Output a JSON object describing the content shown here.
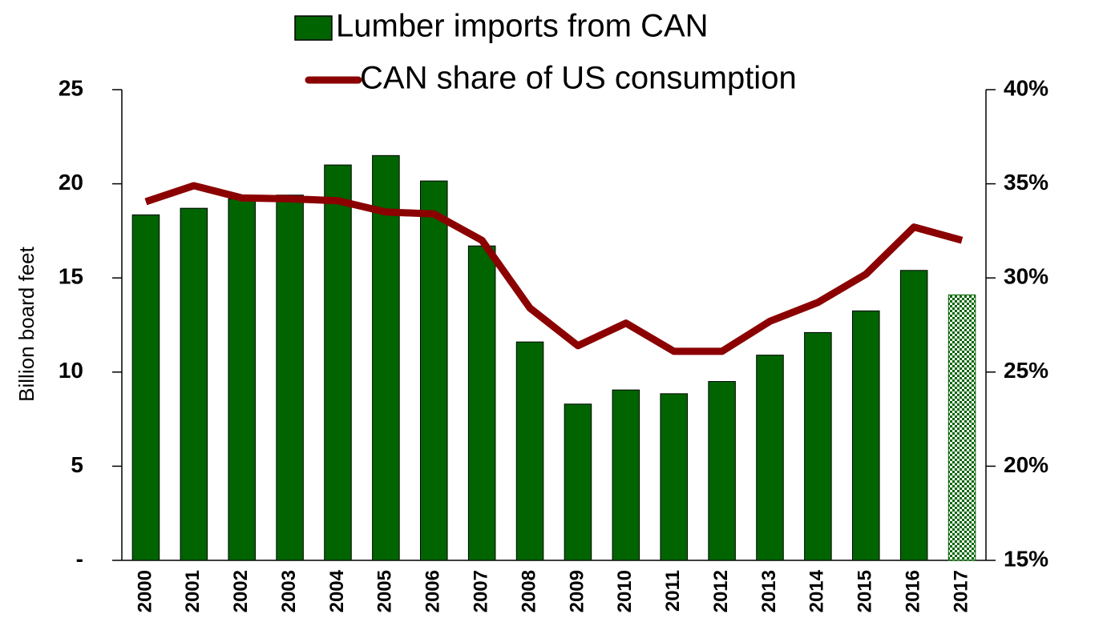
{
  "chart_data": {
    "type": "bar",
    "categories": [
      "2000",
      "2001",
      "2002",
      "2003",
      "2004",
      "2005",
      "2006",
      "2007",
      "2008",
      "2009",
      "2010",
      "2011",
      "2012",
      "2013",
      "2014",
      "2015",
      "2016",
      "2017"
    ],
    "series": [
      {
        "name": "Lumber imports from CAN",
        "color": "#006400",
        "type": "bar",
        "values": [
          18.35,
          18.7,
          19.2,
          19.4,
          21.0,
          21.5,
          20.15,
          16.7,
          11.6,
          8.3,
          9.05,
          8.85,
          9.5,
          10.9,
          12.1,
          13.25,
          15.4,
          14.1
        ],
        "checkered": [
          17
        ]
      },
      {
        "name": "CAN share of US consumption",
        "color": "#8b0000",
        "type": "line",
        "axis": "y2",
        "values": [
          34.05,
          34.9,
          34.25,
          34.2,
          34.1,
          33.5,
          33.4,
          32.0,
          28.4,
          26.4,
          27.6,
          26.1,
          26.1,
          27.7,
          28.7,
          30.2,
          32.7,
          32.0
        ]
      }
    ],
    "ylabel": "Billion board feet",
    "ylim": [
      0,
      25
    ],
    "yticks": [
      {
        "value": 0,
        "label": "-"
      },
      5,
      10,
      15,
      20,
      25
    ],
    "y2lim": [
      15,
      40
    ],
    "y2ticks": [
      {
        "value": 15,
        "label": "15%"
      },
      {
        "value": 20,
        "label": "20%"
      },
      {
        "value": 25,
        "label": "25%"
      },
      {
        "value": 30,
        "label": "30%"
      },
      {
        "value": 35,
        "label": "35%"
      },
      {
        "value": 40,
        "label": "40%"
      }
    ],
    "legend": "top"
  }
}
